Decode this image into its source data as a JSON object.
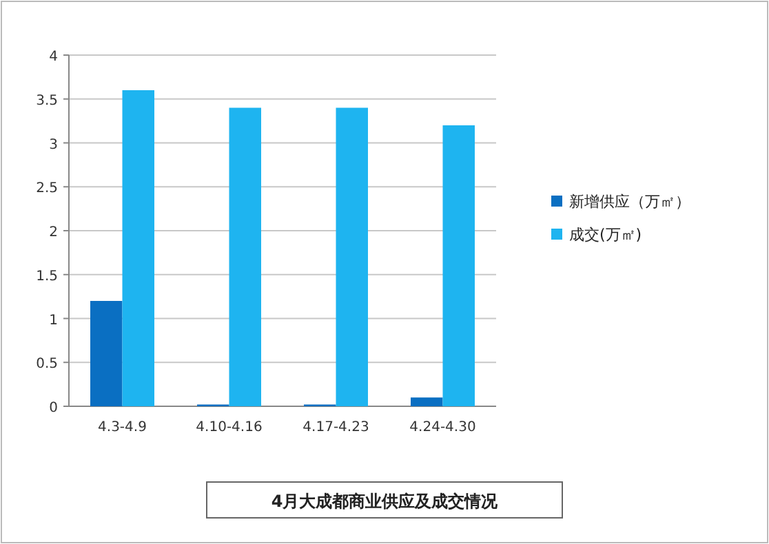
{
  "chart_data": {
    "type": "bar",
    "title": "4月大成都商业供应及成交情况",
    "categories": [
      "4.3-4.9",
      "4.10-4.16",
      "4.17-4.23",
      "4.24-4.30"
    ],
    "series": [
      {
        "name": "新增供应（万㎡）",
        "color": "#0a6fc2",
        "values": [
          1.2,
          0.02,
          0.02,
          0.1
        ]
      },
      {
        "name": "成交(万㎡)",
        "color": "#1eb4f0",
        "values": [
          3.6,
          3.4,
          3.4,
          3.2
        ]
      }
    ],
    "ylim": [
      0,
      4
    ],
    "yticks": [
      0,
      0.5,
      1,
      1.5,
      2,
      2.5,
      3,
      3.5,
      4
    ],
    "grid": "y",
    "legend": "right"
  }
}
